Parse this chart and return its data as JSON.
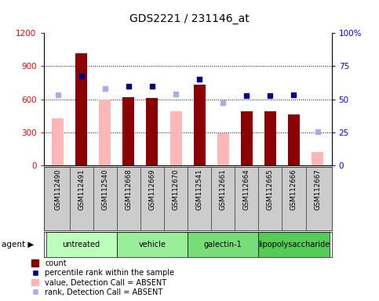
{
  "title": "GDS2221 / 231146_at",
  "samples": [
    "GSM112490",
    "GSM112491",
    "GSM112540",
    "GSM112668",
    "GSM112669",
    "GSM112670",
    "GSM112541",
    "GSM112661",
    "GSM112664",
    "GSM112665",
    "GSM112666",
    "GSM112667"
  ],
  "groups": [
    {
      "label": "untreated",
      "color": "#bbffbb",
      "indices": [
        0,
        1,
        2
      ]
    },
    {
      "label": "vehicle",
      "color": "#99ee99",
      "indices": [
        3,
        4,
        5
      ]
    },
    {
      "label": "galectin-1",
      "color": "#77dd77",
      "indices": [
        6,
        7,
        8
      ]
    },
    {
      "label": "lipopolysaccharide",
      "color": "#55cc55",
      "indices": [
        9,
        10,
        11
      ]
    }
  ],
  "count_present": [
    null,
    1020,
    null,
    620,
    615,
    null,
    730,
    null,
    490,
    490,
    460,
    null
  ],
  "count_absent": [
    430,
    null,
    595,
    null,
    null,
    490,
    null,
    295,
    null,
    null,
    null,
    120
  ],
  "rank_present_pct": [
    null,
    67.5,
    null,
    60.0,
    59.6,
    null,
    65.4,
    null,
    52.9,
    52.5,
    53.3,
    null
  ],
  "rank_absent_pct": [
    53.3,
    null,
    58.3,
    null,
    null,
    54.2,
    null,
    47.5,
    null,
    null,
    null,
    25.8
  ],
  "ylim_left": [
    0,
    1200
  ],
  "ylim_right": [
    0,
    100
  ],
  "yticks_left": [
    0,
    300,
    600,
    900,
    1200
  ],
  "ytick_labels_left": [
    "0",
    "300",
    "600",
    "900",
    "1200"
  ],
  "ytick_labels_right": [
    "0",
    "25",
    "50",
    "75",
    "100%"
  ],
  "color_count_present": "#8B0000",
  "color_count_absent": "#FFB6B6",
  "color_rank_present": "#00008B",
  "color_rank_absent": "#AAAAEE",
  "background_color": "#ffffff",
  "grid_color": "#000000",
  "xtick_bg": "#cccccc"
}
